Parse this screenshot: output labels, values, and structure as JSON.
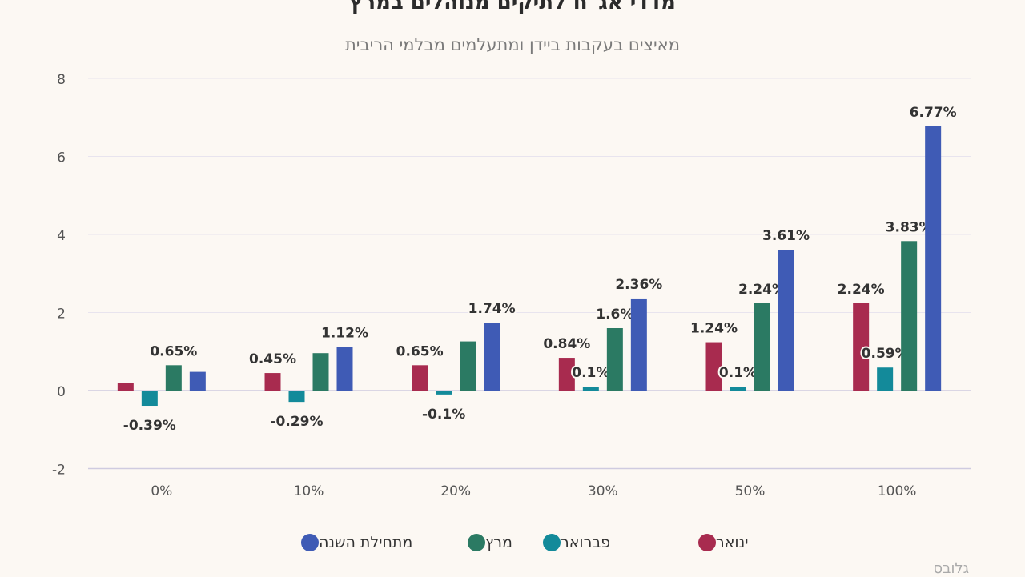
{
  "title": "מדדי אג\"ח לתיקים מנוהלים במרץ",
  "subtitle": "מאיצים בעקבות ביידן ומתעלמים מבלמי הריבית",
  "source": "גלובס",
  "legend": [
    {
      "label": "ינואר",
      "color": "#a82b4f"
    },
    {
      "label": "פברואר",
      "color": "#138a9a"
    },
    {
      "label": "מרץ",
      "color": "#2b7a63"
    },
    {
      "label": "מתחילת השנה",
      "color": "#3f5bb5"
    }
  ],
  "chart_data": {
    "type": "bar",
    "title": "מדדי אג\"ח לתיקים מנוהלים במרץ",
    "subtitle": "מאיצים בעקבות ביידן ומתעלמים מבלמי הריבית",
    "categories": [
      "0%",
      "10%",
      "20%",
      "30%",
      "50%",
      "100%"
    ],
    "series": [
      {
        "name": "ינואר",
        "color": "#a82b4f",
        "values": [
          0.2,
          0.45,
          0.65,
          0.84,
          1.24,
          2.24
        ],
        "labels": [
          "",
          "0.45%",
          "0.65%",
          "0.84%",
          "1.24%",
          "2.24%"
        ]
      },
      {
        "name": "פברואר",
        "color": "#138a9a",
        "values": [
          -0.39,
          -0.29,
          -0.1,
          0.1,
          0.1,
          0.59
        ],
        "labels": [
          "-0.39%",
          "-0.29%",
          "-0.1%",
          "0.1%",
          "0.1%",
          "0.59%"
        ]
      },
      {
        "name": "מרץ",
        "color": "#2b7a63",
        "values": [
          0.65,
          0.96,
          1.26,
          1.6,
          2.24,
          3.83
        ],
        "labels": [
          "0.65%",
          "",
          "",
          "1.6%",
          "2.24%",
          "3.83%"
        ]
      },
      {
        "name": "מתחילת השנה",
        "color": "#3f5bb5",
        "values": [
          0.48,
          1.12,
          1.74,
          2.36,
          3.61,
          6.77
        ],
        "labels": [
          "",
          "1.12%",
          "1.74%",
          "2.36%",
          "3.61%",
          "6.77%"
        ]
      }
    ],
    "y_ticks": [
      "8",
      "6",
      "4",
      "2",
      "0",
      "-2"
    ],
    "ylim": [
      -2,
      8
    ],
    "xlabel": "",
    "ylabel": "",
    "grid": true
  }
}
